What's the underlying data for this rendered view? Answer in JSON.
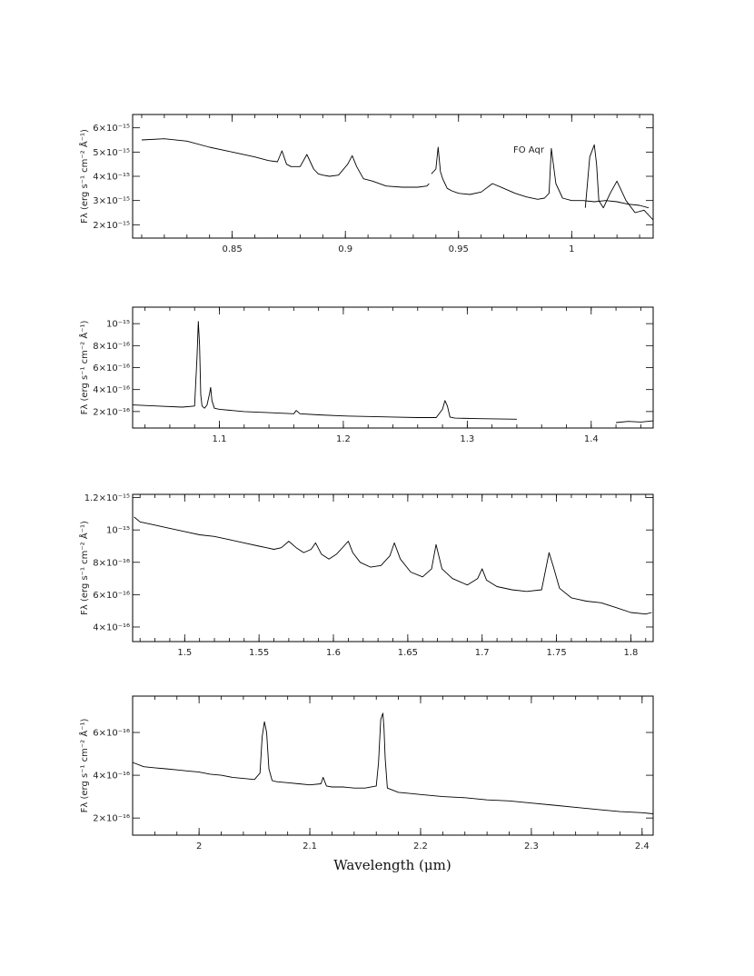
{
  "figure": {
    "xlabel": "Wavelength (μm)"
  },
  "chart_data": [
    {
      "type": "line",
      "ylabel": "Fλ (erg s⁻¹ cm⁻² Å⁻¹)",
      "annotation": "FO Aqr",
      "xlim": [
        0.806,
        1.036
      ],
      "ylim": [
        1.45e-15,
        6.55e-15
      ],
      "x_ticks": [
        0.85,
        0.9,
        0.95,
        1
      ],
      "x_tick_labels": [
        "0.85",
        "0.9",
        "0.95",
        "1"
      ],
      "y_ticks": [
        2e-15,
        3e-15,
        4e-15,
        5e-15,
        6e-15
      ],
      "y_tick_labels": [
        "2×10⁻¹⁵",
        "3×10⁻¹⁵",
        "4×10⁻¹⁵",
        "5×10⁻¹⁵",
        "6×10⁻¹⁵"
      ],
      "segments": [
        {
          "x": [
            0.81,
            0.82,
            0.83,
            0.84,
            0.85,
            0.86,
            0.866,
            0.87,
            0.872,
            0.874,
            0.876,
            0.88,
            0.883,
            0.886,
            0.888,
            0.89,
            0.893,
            0.897,
            0.901,
            0.903,
            0.905,
            0.908,
            0.912,
            0.918,
            0.925,
            0.932,
            0.936,
            0.937
          ],
          "y": [
            5.5e-15,
            5.55e-15,
            5.45e-15,
            5.2e-15,
            5e-15,
            4.8e-15,
            4.65e-15,
            4.6e-15,
            5.05e-15,
            4.5e-15,
            4.4e-15,
            4.4e-15,
            4.9e-15,
            4.3e-15,
            4.1e-15,
            4.05e-15,
            4e-15,
            4.05e-15,
            4.5e-15,
            4.85e-15,
            4.4e-15,
            3.9e-15,
            3.8e-15,
            3.6e-15,
            3.55e-15,
            3.55e-15,
            3.6e-15,
            3.7e-15
          ]
        },
        {
          "x": [
            0.938,
            0.94,
            0.941,
            0.942,
            0.943,
            0.944,
            0.945,
            0.947,
            0.95,
            0.955,
            0.96,
            0.965,
            0.97,
            0.975,
            0.98,
            0.985,
            0.988,
            0.99,
            0.991,
            0.993,
            0.996,
            1.0,
            1.005,
            1.01,
            1.015,
            1.02,
            1.025,
            1.03,
            1.034
          ],
          "y": [
            4.1e-15,
            4.3e-15,
            5.2e-15,
            4.2e-15,
            3.9e-15,
            3.7e-15,
            3.5e-15,
            3.4e-15,
            3.3e-15,
            3.25e-15,
            3.35e-15,
            3.7e-15,
            3.5e-15,
            3.3e-15,
            3.15e-15,
            3.05e-15,
            3.1e-15,
            3.3e-15,
            5.15e-15,
            3.7e-15,
            3.1e-15,
            3e-15,
            3e-15,
            2.95e-15,
            3e-15,
            2.95e-15,
            2.85e-15,
            2.8e-15,
            2.7e-15
          ]
        },
        {
          "x": [
            1.006,
            1.008,
            1.01,
            1.011,
            1.012,
            1.014,
            1.017,
            1.02,
            1.024,
            1.028,
            1.032,
            1.036
          ],
          "y": [
            2.7e-15,
            4.8e-15,
            5.3e-15,
            4.5e-15,
            3e-15,
            2.7e-15,
            3.3e-15,
            3.8e-15,
            3e-15,
            2.5e-15,
            2.6e-15,
            2.2e-15
          ]
        }
      ]
    },
    {
      "type": "line",
      "ylabel": "Fλ (erg s⁻¹ cm⁻² Å⁻¹)",
      "xlim": [
        1.03,
        1.45
      ],
      "ylim": [
        5e-17,
        1.15e-15
      ],
      "x_ticks": [
        1.1,
        1.2,
        1.3,
        1.4
      ],
      "x_tick_labels": [
        "1.1",
        "1.2",
        "1.3",
        "1.4"
      ],
      "y_ticks": [
        2e-16,
        4e-16,
        6e-16,
        8e-16,
        1e-15
      ],
      "y_tick_labels": [
        "2×10⁻¹⁶",
        "4×10⁻¹⁶",
        "6×10⁻¹⁶",
        "8×10⁻¹⁶",
        "10⁻¹⁵"
      ],
      "segments": [
        {
          "x": [
            1.03,
            1.05,
            1.07,
            1.08,
            1.082,
            1.083,
            1.084,
            1.085,
            1.086,
            1.088,
            1.09,
            1.092,
            1.093,
            1.094,
            1.096,
            1.1,
            1.12,
            1.14,
            1.16,
            1.162,
            1.165,
            1.18,
            1.2,
            1.22,
            1.24,
            1.26,
            1.275,
            1.28,
            1.282,
            1.284,
            1.286,
            1.29,
            1.31,
            1.34
          ],
          "y": [
            2.6e-16,
            2.5e-16,
            2.4e-16,
            2.5e-16,
            7e-16,
            1.02e-15,
            8e-16,
            3.5e-16,
            2.5e-16,
            2.3e-16,
            2.6e-16,
            3.6e-16,
            4.2e-16,
            3e-16,
            2.3e-16,
            2.2e-16,
            2e-16,
            1.9e-16,
            1.8e-16,
            2.1e-16,
            1.8e-16,
            1.7e-16,
            1.6e-16,
            1.55e-16,
            1.5e-16,
            1.45e-16,
            1.45e-16,
            2.2e-16,
            3e-16,
            2.5e-16,
            1.5e-16,
            1.4e-16,
            1.35e-16,
            1.3e-16
          ]
        },
        {
          "x": [
            1.42,
            1.43,
            1.44,
            1.45
          ],
          "y": [
            1e-16,
            1.1e-16,
            1.05e-16,
            1.15e-16
          ]
        }
      ]
    },
    {
      "type": "line",
      "ylabel": "Fλ (erg s⁻¹ cm⁻² Å⁻¹)",
      "xlim": [
        1.465,
        1.815
      ],
      "ylim": [
        3.1e-16,
        1.22e-15
      ],
      "x_ticks": [
        1.5,
        1.55,
        1.6,
        1.65,
        1.7,
        1.75,
        1.8
      ],
      "x_tick_labels": [
        "1.5",
        "1.55",
        "1.6",
        "1.65",
        "1.7",
        "1.75",
        "1.8"
      ],
      "y_ticks": [
        4e-16,
        6e-16,
        8e-16,
        1e-15,
        1.2e-15
      ],
      "y_tick_labels": [
        "4×10⁻¹⁶",
        "6×10⁻¹⁶",
        "8×10⁻¹⁶",
        "10⁻¹⁵",
        "1.2×10⁻¹⁵"
      ],
      "segments": [
        {
          "x": [
            1.466,
            1.47,
            1.48,
            1.49,
            1.5,
            1.51,
            1.52,
            1.53,
            1.54,
            1.55,
            1.555,
            1.56,
            1.565,
            1.57,
            1.575,
            1.58,
            1.585,
            1.588,
            1.592,
            1.597,
            1.602,
            1.607,
            1.61,
            1.613,
            1.618,
            1.625,
            1.632,
            1.638,
            1.641,
            1.645,
            1.652,
            1.66,
            1.666,
            1.669,
            1.673,
            1.68,
            1.69,
            1.697,
            1.7,
            1.703,
            1.71,
            1.72,
            1.73,
            1.74,
            1.745,
            1.748,
            1.752,
            1.76,
            1.77,
            1.78,
            1.79,
            1.8,
            1.81,
            1.814
          ],
          "y": [
            1.08e-15,
            1.05e-15,
            1.03e-15,
            1.01e-15,
            9.9e-16,
            9.7e-16,
            9.6e-16,
            9.4e-16,
            9.2e-16,
            9e-16,
            8.9e-16,
            8.8e-16,
            8.9e-16,
            9.3e-16,
            8.9e-16,
            8.6e-16,
            8.8e-16,
            9.2e-16,
            8.5e-16,
            8.2e-16,
            8.5e-16,
            9e-16,
            9.3e-16,
            8.6e-16,
            8e-16,
            7.7e-16,
            7.8e-16,
            8.4e-16,
            9.2e-16,
            8.2e-16,
            7.4e-16,
            7.1e-16,
            7.6e-16,
            9.1e-16,
            7.6e-16,
            7e-16,
            6.6e-16,
            7e-16,
            7.6e-16,
            6.9e-16,
            6.5e-16,
            6.3e-16,
            6.2e-16,
            6.3e-16,
            8.6e-16,
            7.7e-16,
            6.4e-16,
            5.8e-16,
            5.6e-16,
            5.5e-16,
            5.2e-16,
            4.9e-16,
            4.8e-16,
            4.9e-16
          ]
        }
      ]
    },
    {
      "type": "line",
      "ylabel": "Fλ (erg s⁻¹ cm⁻² Å⁻¹)",
      "xlim": [
        1.94,
        2.41
      ],
      "ylim": [
        1.2e-16,
        7.7e-16
      ],
      "x_ticks": [
        2.0,
        2.1,
        2.2,
        2.3,
        2.4
      ],
      "x_tick_labels": [
        "2",
        "2.1",
        "2.2",
        "2.3",
        "2.4"
      ],
      "y_ticks": [
        2e-16,
        4e-16,
        6e-16
      ],
      "y_tick_labels": [
        "2×10⁻¹⁶",
        "4×10⁻¹⁶",
        "6×10⁻¹⁶"
      ],
      "segments": [
        {
          "x": [
            1.94,
            1.95,
            1.96,
            1.97,
            1.98,
            1.99,
            2.0,
            2.01,
            2.02,
            2.03,
            2.04,
            2.05,
            2.055,
            2.057,
            2.059,
            2.061,
            2.063,
            2.066,
            2.07,
            2.08,
            2.09,
            2.1,
            2.11,
            2.112,
            2.115,
            2.12,
            2.13,
            2.14,
            2.15,
            2.16,
            2.162,
            2.164,
            2.166,
            2.167,
            2.168,
            2.17,
            2.175,
            2.18,
            2.19,
            2.2,
            2.22,
            2.24,
            2.26,
            2.28,
            2.3,
            2.32,
            2.34,
            2.36,
            2.38,
            2.4,
            2.41
          ],
          "y": [
            4.6e-16,
            4.4e-16,
            4.35e-16,
            4.3e-16,
            4.25e-16,
            4.2e-16,
            4.15e-16,
            4.05e-16,
            4e-16,
            3.9e-16,
            3.85e-16,
            3.8e-16,
            4.1e-16,
            5.8e-16,
            6.5e-16,
            6e-16,
            4.3e-16,
            3.75e-16,
            3.7e-16,
            3.65e-16,
            3.6e-16,
            3.55e-16,
            3.6e-16,
            3.9e-16,
            3.5e-16,
            3.45e-16,
            3.45e-16,
            3.4e-16,
            3.4e-16,
            3.5e-16,
            4.6e-16,
            6.6e-16,
            6.9e-16,
            6.2e-16,
            4.8e-16,
            3.4e-16,
            3.3e-16,
            3.2e-16,
            3.15e-16,
            3.1e-16,
            3e-16,
            2.95e-16,
            2.85e-16,
            2.8e-16,
            2.7e-16,
            2.6e-16,
            2.5e-16,
            2.4e-16,
            2.3e-16,
            2.25e-16,
            2.2e-16
          ]
        }
      ]
    }
  ]
}
